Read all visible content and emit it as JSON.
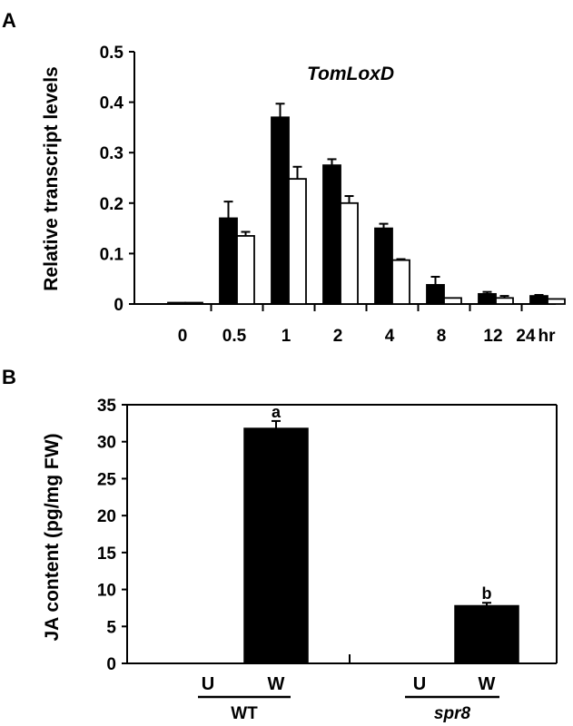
{
  "chart_data": [
    {
      "panel_label": "A",
      "type": "bar",
      "title": "TomLoxD",
      "ylabel": "Relative transcript levels",
      "xlabel": "",
      "x_unit": "hr",
      "categories": [
        "0",
        "0.5",
        "1",
        "2",
        "4",
        "8",
        "12",
        "24"
      ],
      "ylim": [
        0,
        0.5
      ],
      "yticks": [
        "0",
        "0.1",
        "0.2",
        "0.3",
        "0.4",
        "0.5"
      ],
      "ytick_values": [
        0,
        0.1,
        0.2,
        0.3,
        0.4,
        0.5
      ],
      "grid": false,
      "legend": "none",
      "series": [
        {
          "fill": "#000000",
          "values": [
            0.002,
            0.17,
            0.37,
            0.275,
            0.15,
            0.038,
            0.02,
            0.016
          ],
          "errors": [
            0.0,
            0.033,
            0.027,
            0.012,
            0.009,
            0.016,
            0.004,
            0.002
          ]
        },
        {
          "fill": "#ffffff",
          "values": [
            0.001,
            0.135,
            0.248,
            0.2,
            0.087,
            0.012,
            0.012,
            0.01
          ],
          "errors": [
            0.0,
            0.008,
            0.024,
            0.014,
            0.002,
            0.0,
            0.004,
            0.0
          ]
        }
      ]
    },
    {
      "panel_label": "B",
      "type": "bar",
      "title": "",
      "ylabel": "JA content (pg/mg FW)",
      "xlabel": "",
      "categories": [
        "U",
        "W",
        "U",
        "W"
      ],
      "groups": [
        "WT",
        "spr8"
      ],
      "ylim": [
        0,
        35
      ],
      "yticks": [
        "0",
        "5",
        "10",
        "15",
        "20",
        "25",
        "30",
        "35"
      ],
      "ytick_values": [
        0,
        5,
        10,
        15,
        20,
        25,
        30,
        35
      ],
      "grid": false,
      "legend": "none",
      "series": [
        {
          "fill": "#000000",
          "values": [
            0,
            31.8,
            0,
            7.8
          ],
          "errors": [
            0,
            1.0,
            0,
            0.4
          ],
          "annotations": [
            "",
            "a",
            "",
            "b"
          ]
        }
      ]
    }
  ]
}
